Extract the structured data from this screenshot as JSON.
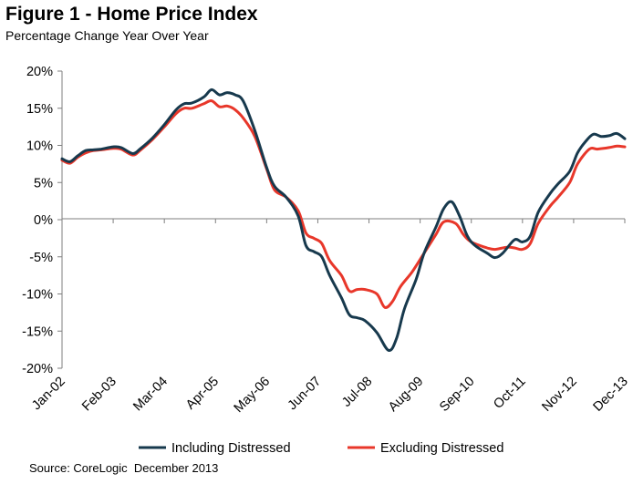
{
  "header": {
    "title": "Figure 1 - Home Price Index",
    "subtitle": "Percentage Change Year Over Year"
  },
  "footer": {
    "source": "Source: CoreLogic  December 2013"
  },
  "colors": {
    "including": "#17394d",
    "excluding": "#e8372a",
    "axis": "#7f7f7f"
  },
  "chart_data": {
    "type": "line",
    "title": "Figure 1 - Home Price Index",
    "subtitle": "Percentage Change Year Over Year",
    "xlabel": "",
    "ylabel": "",
    "x_ticks": [
      "Jan-02",
      "Feb-03",
      "Mar-04",
      "Apr-05",
      "May-06",
      "Jun-07",
      "Jul-08",
      "Aug-09",
      "Sep-10",
      "Oct-11",
      "Nov-12",
      "Dec-13"
    ],
    "y_ticks": [
      "20%",
      "15%",
      "10%",
      "5%",
      "0%",
      "-5%",
      "-10%",
      "-15%",
      "-20%"
    ],
    "ylim": [
      -20,
      20
    ],
    "xlim": [
      "2002-01",
      "2013-12"
    ],
    "grid": false,
    "legend_position": "bottom",
    "series": [
      {
        "name": "Including Distressed",
        "color": "#17394d",
        "points": [
          [
            "2002-01",
            8.2
          ],
          [
            "2002-03",
            7.8
          ],
          [
            "2002-05",
            8.6
          ],
          [
            "2002-07",
            9.3
          ],
          [
            "2002-09",
            9.4
          ],
          [
            "2002-11",
            9.5
          ],
          [
            "2003-02",
            9.8
          ],
          [
            "2003-04",
            9.7
          ],
          [
            "2003-07",
            8.9
          ],
          [
            "2003-09",
            9.6
          ],
          [
            "2003-12",
            11.0
          ],
          [
            "2004-03",
            12.8
          ],
          [
            "2004-06",
            14.8
          ],
          [
            "2004-08",
            15.6
          ],
          [
            "2004-10",
            15.7
          ],
          [
            "2005-01",
            16.5
          ],
          [
            "2005-03",
            17.5
          ],
          [
            "2005-05",
            16.8
          ],
          [
            "2005-07",
            17.1
          ],
          [
            "2005-09",
            16.8
          ],
          [
            "2005-11",
            16.0
          ],
          [
            "2006-02",
            12.0
          ],
          [
            "2006-05",
            7.0
          ],
          [
            "2006-07",
            4.5
          ],
          [
            "2006-10",
            3.0
          ],
          [
            "2007-01",
            0.5
          ],
          [
            "2007-03",
            -3.5
          ],
          [
            "2007-05",
            -4.3
          ],
          [
            "2007-07",
            -5.0
          ],
          [
            "2007-09",
            -7.5
          ],
          [
            "2007-12",
            -10.5
          ],
          [
            "2008-02",
            -12.8
          ],
          [
            "2008-04",
            -13.2
          ],
          [
            "2008-06",
            -13.6
          ],
          [
            "2008-09",
            -15.2
          ],
          [
            "2008-12",
            -17.6
          ],
          [
            "2009-02",
            -16.0
          ],
          [
            "2009-04",
            -12.0
          ],
          [
            "2009-07",
            -8.0
          ],
          [
            "2009-09",
            -4.5
          ],
          [
            "2009-12",
            -1.0
          ],
          [
            "2010-02",
            1.5
          ],
          [
            "2010-04",
            2.4
          ],
          [
            "2010-06",
            0.5
          ],
          [
            "2010-08",
            -2.2
          ],
          [
            "2010-10",
            -3.5
          ],
          [
            "2011-01",
            -4.5
          ],
          [
            "2011-03",
            -5.1
          ],
          [
            "2011-05",
            -4.5
          ],
          [
            "2011-08",
            -2.7
          ],
          [
            "2011-10",
            -3.0
          ],
          [
            "2011-12",
            -2.2
          ],
          [
            "2012-02",
            1.0
          ],
          [
            "2012-05",
            3.5
          ],
          [
            "2012-07",
            4.8
          ],
          [
            "2012-10",
            6.5
          ],
          [
            "2012-12",
            9.0
          ],
          [
            "2013-02",
            10.5
          ],
          [
            "2013-04",
            11.5
          ],
          [
            "2013-06",
            11.2
          ],
          [
            "2013-08",
            11.3
          ],
          [
            "2013-10",
            11.6
          ],
          [
            "2013-12",
            10.9
          ]
        ]
      },
      {
        "name": "Excluding Distressed",
        "color": "#e8372a",
        "points": [
          [
            "2002-01",
            8.0
          ],
          [
            "2002-03",
            7.6
          ],
          [
            "2002-05",
            8.4
          ],
          [
            "2002-07",
            9.0
          ],
          [
            "2002-09",
            9.3
          ],
          [
            "2002-11",
            9.4
          ],
          [
            "2003-02",
            9.6
          ],
          [
            "2003-04",
            9.5
          ],
          [
            "2003-07",
            8.7
          ],
          [
            "2003-09",
            9.4
          ],
          [
            "2003-12",
            10.8
          ],
          [
            "2004-03",
            12.5
          ],
          [
            "2004-06",
            14.3
          ],
          [
            "2004-08",
            15.0
          ],
          [
            "2004-10",
            15.0
          ],
          [
            "2005-01",
            15.6
          ],
          [
            "2005-03",
            16.0
          ],
          [
            "2005-05",
            15.2
          ],
          [
            "2005-07",
            15.3
          ],
          [
            "2005-09",
            14.8
          ],
          [
            "2005-11",
            13.7
          ],
          [
            "2006-02",
            11.2
          ],
          [
            "2006-05",
            6.8
          ],
          [
            "2006-07",
            4.0
          ],
          [
            "2006-10",
            3.0
          ],
          [
            "2007-01",
            1.2
          ],
          [
            "2007-03",
            -1.8
          ],
          [
            "2007-05",
            -2.5
          ],
          [
            "2007-07",
            -3.2
          ],
          [
            "2007-09",
            -5.5
          ],
          [
            "2007-12",
            -7.5
          ],
          [
            "2008-02",
            -9.6
          ],
          [
            "2008-04",
            -9.4
          ],
          [
            "2008-06",
            -9.4
          ],
          [
            "2008-09",
            -10.0
          ],
          [
            "2008-11",
            -11.8
          ],
          [
            "2009-01",
            -11.0
          ],
          [
            "2009-03",
            -9.0
          ],
          [
            "2009-06",
            -7.0
          ],
          [
            "2009-09",
            -4.5
          ],
          [
            "2009-12",
            -2.0
          ],
          [
            "2010-02",
            -0.3
          ],
          [
            "2010-05",
            -0.5
          ],
          [
            "2010-07",
            -2.0
          ],
          [
            "2010-09",
            -3.0
          ],
          [
            "2011-01",
            -3.8
          ],
          [
            "2011-03",
            -4.0
          ],
          [
            "2011-06",
            -3.7
          ],
          [
            "2011-08",
            -3.8
          ],
          [
            "2011-10",
            -4.0
          ],
          [
            "2011-12",
            -3.2
          ],
          [
            "2012-02",
            -0.5
          ],
          [
            "2012-05",
            1.8
          ],
          [
            "2012-07",
            3.0
          ],
          [
            "2012-10",
            5.0
          ],
          [
            "2012-12",
            7.5
          ],
          [
            "2013-03",
            9.5
          ],
          [
            "2013-05",
            9.5
          ],
          [
            "2013-08",
            9.7
          ],
          [
            "2013-10",
            9.9
          ],
          [
            "2013-12",
            9.8
          ]
        ]
      }
    ]
  }
}
